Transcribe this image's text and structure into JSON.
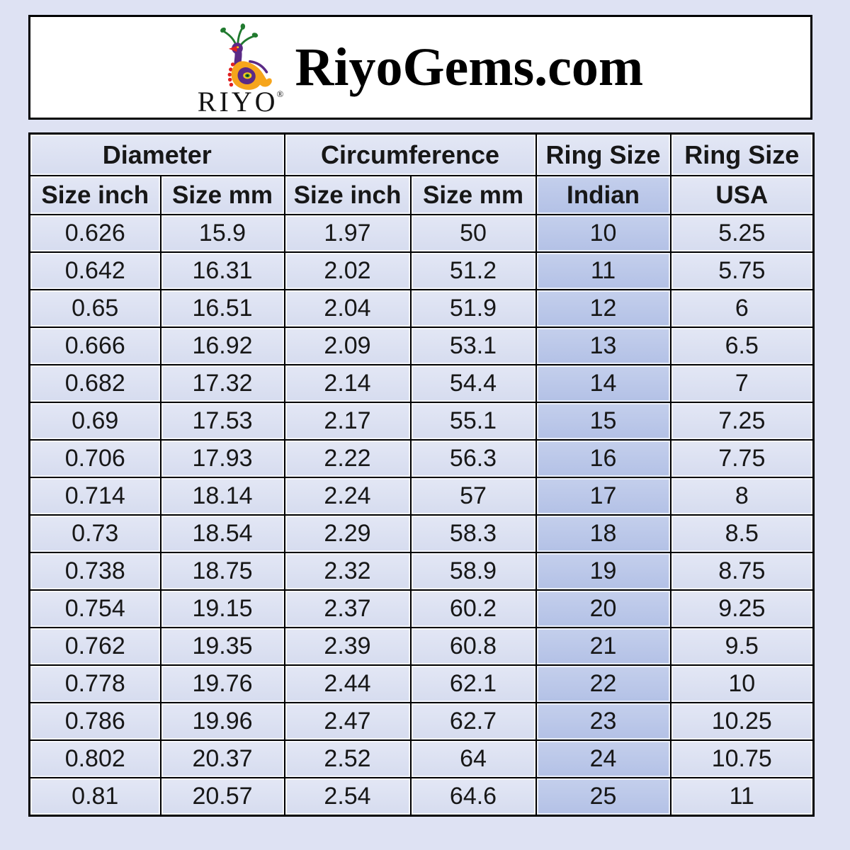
{
  "header": {
    "title": "RiyoGems.com",
    "logo_text": "RIYO",
    "registered_mark": "®"
  },
  "chart_data": {
    "type": "table",
    "title": "RiyoGems.com",
    "column_groups": [
      {
        "label": "Diameter",
        "span": 2
      },
      {
        "label": "Circumference",
        "span": 2
      },
      {
        "label": "Ring Size",
        "span": 1
      },
      {
        "label": "Ring Size",
        "span": 1
      }
    ],
    "columns": [
      "Size inch",
      "Size mm",
      "Size inch",
      "Size mm",
      "Indian",
      "USA"
    ],
    "highlighted_column": "Indian",
    "rows": [
      [
        "0.626",
        "15.9",
        "1.97",
        "50",
        "10",
        "5.25"
      ],
      [
        "0.642",
        "16.31",
        "2.02",
        "51.2",
        "11",
        "5.75"
      ],
      [
        "0.65",
        "16.51",
        "2.04",
        "51.9",
        "12",
        "6"
      ],
      [
        "0.666",
        "16.92",
        "2.09",
        "53.1",
        "13",
        "6.5"
      ],
      [
        "0.682",
        "17.32",
        "2.14",
        "54.4",
        "14",
        "7"
      ],
      [
        "0.69",
        "17.53",
        "2.17",
        "55.1",
        "15",
        "7.25"
      ],
      [
        "0.706",
        "17.93",
        "2.22",
        "56.3",
        "16",
        "7.75"
      ],
      [
        "0.714",
        "18.14",
        "2.24",
        "57",
        "17",
        "8"
      ],
      [
        "0.73",
        "18.54",
        "2.29",
        "58.3",
        "18",
        "8.5"
      ],
      [
        "0.738",
        "18.75",
        "2.32",
        "58.9",
        "19",
        "8.75"
      ],
      [
        "0.754",
        "19.15",
        "2.37",
        "60.2",
        "20",
        "9.25"
      ],
      [
        "0.762",
        "19.35",
        "2.39",
        "60.8",
        "21",
        "9.5"
      ],
      [
        "0.778",
        "19.76",
        "2.44",
        "62.1",
        "22",
        "10"
      ],
      [
        "0.786",
        "19.96",
        "2.47",
        "62.7",
        "23",
        "10.25"
      ],
      [
        "0.802",
        "20.37",
        "2.52",
        "64",
        "24",
        "10.75"
      ],
      [
        "0.81",
        "20.57",
        "2.54",
        "64.6",
        "25",
        "11"
      ]
    ]
  },
  "colors": {
    "page_background": "#dee2f3",
    "cell_background": "#dce1f1",
    "highlighted_column_background": "#b9c6e8",
    "header_box_background": "#ffffff",
    "border": "#000000",
    "logo_green": "#217a2f",
    "logo_purple": "#5b2a86",
    "logo_orange": "#f6a51c",
    "logo_red": "#e02020",
    "logo_eye_yellow": "#f0c81e"
  }
}
